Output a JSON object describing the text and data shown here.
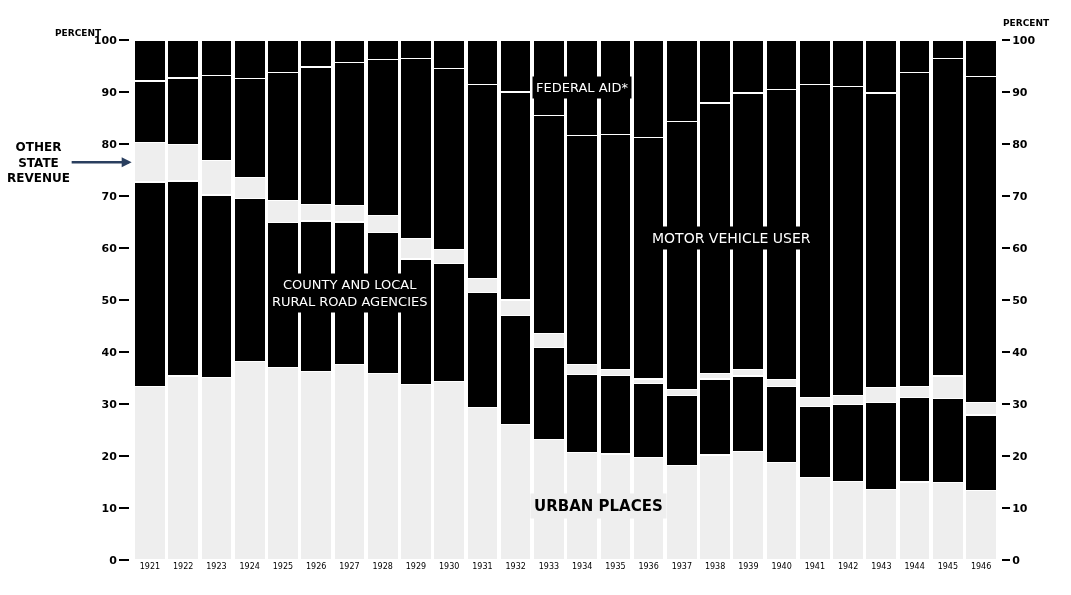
{
  "chart_data": {
    "type": "bar",
    "stacked": true,
    "ylabel": "PERCENT",
    "y2label": "PERCENT",
    "categories": [
      "1921",
      "1922",
      "1923",
      "1924",
      "1925",
      "1926",
      "1927",
      "1928",
      "1929",
      "1930",
      "1931",
      "1932",
      "1933",
      "1934",
      "1935",
      "1936",
      "1937",
      "1938",
      "1939",
      "1940",
      "1941",
      "1942",
      "1943",
      "1944",
      "1945",
      "1946"
    ],
    "series": [
      {
        "name": "URBAN PLACES",
        "color": "#eeeeee",
        "values": [
          33.3,
          35.4,
          35.1,
          38.1,
          37.0,
          36.2,
          37.6,
          35.8,
          33.7,
          34.4,
          29.3,
          26.0,
          23.1,
          20.6,
          20.4,
          19.7,
          18.2,
          20.2,
          20.8,
          18.7,
          15.8,
          15.1,
          13.6,
          15.0,
          14.9,
          13.3
        ]
      },
      {
        "name": "COUNTY AND LOCAL\nRURAL ROAD AGENCIES",
        "color": "#000000",
        "values": [
          39.4,
          37.5,
          35.1,
          31.4,
          27.9,
          29.0,
          27.4,
          27.2,
          24.2,
          22.6,
          22.1,
          21.0,
          17.8,
          15.1,
          15.1,
          14.2,
          13.5,
          14.6,
          14.6,
          14.7,
          13.7,
          14.8,
          16.7,
          16.2,
          16.2,
          14.6
        ]
      },
      {
        "name": "OTHER\nSTATE\nREVENUE",
        "color": "#eeeeee",
        "values": [
          7.6,
          7.0,
          6.6,
          4.0,
          4.2,
          3.2,
          3.1,
          3.2,
          4.0,
          2.7,
          2.7,
          3.0,
          2.7,
          1.9,
          1.2,
          0.9,
          1.1,
          1.0,
          1.2,
          1.3,
          1.7,
          1.8,
          2.8,
          2.2,
          4.3,
          2.4
        ]
      },
      {
        "name": "MOTOR VEHICLE USER",
        "color": "#000000",
        "values": [
          11.8,
          12.8,
          16.3,
          19.1,
          24.7,
          26.4,
          27.5,
          30.0,
          34.5,
          34.8,
          37.3,
          40.0,
          41.9,
          44.0,
          45.2,
          46.5,
          51.6,
          52.1,
          53.2,
          55.8,
          60.2,
          59.3,
          56.7,
          60.4,
          61.0,
          62.7
        ]
      },
      {
        "name": "FEDERAL AID*",
        "color": "#000000",
        "values": [
          7.9,
          7.3,
          6.9,
          7.4,
          6.2,
          5.2,
          4.4,
          3.8,
          3.6,
          5.5,
          8.6,
          10.0,
          14.5,
          18.4,
          18.1,
          18.7,
          15.6,
          12.1,
          10.2,
          9.5,
          8.6,
          9.0,
          10.2,
          6.2,
          3.6,
          7.0
        ]
      }
    ],
    "ylim": [
      0,
      100
    ],
    "yticks": [
      0,
      10,
      20,
      30,
      40,
      50,
      60,
      70,
      80,
      90,
      100
    ],
    "y2lim": [
      0,
      100
    ],
    "y2ticks": [
      0,
      10,
      20,
      30,
      40,
      50,
      60,
      70,
      80,
      90,
      100
    ],
    "legend": false
  }
}
